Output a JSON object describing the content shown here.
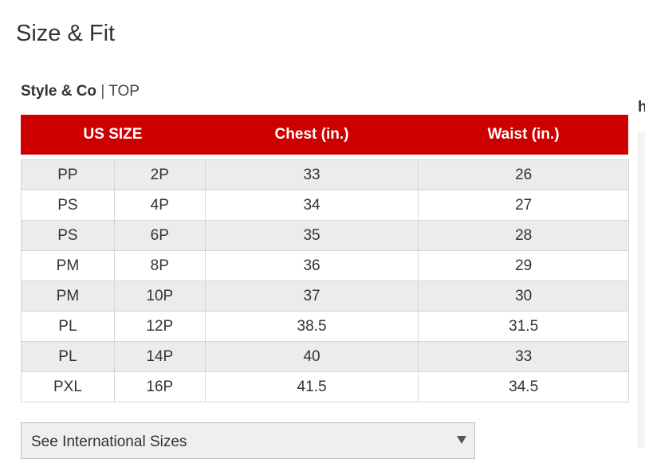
{
  "title": "Size & Fit",
  "subtitle": {
    "brand": "Style & Co",
    "separator": "|",
    "category": "TOP"
  },
  "table": {
    "headers": {
      "size": "US SIZE",
      "chest": "Chest (in.)",
      "waist": "Waist (in.)"
    },
    "rows": [
      {
        "alpha": "PP",
        "numeric": "2P",
        "chest": "33",
        "waist": "26"
      },
      {
        "alpha": "PS",
        "numeric": "4P",
        "chest": "34",
        "waist": "27"
      },
      {
        "alpha": "PS",
        "numeric": "6P",
        "chest": "35",
        "waist": "28"
      },
      {
        "alpha": "PM",
        "numeric": "8P",
        "chest": "36",
        "waist": "29"
      },
      {
        "alpha": "PM",
        "numeric": "10P",
        "chest": "37",
        "waist": "30"
      },
      {
        "alpha": "PL",
        "numeric": "12P",
        "chest": "38.5",
        "waist": "31.5"
      },
      {
        "alpha": "PL",
        "numeric": "14P",
        "chest": "40",
        "waist": "33"
      },
      {
        "alpha": "PXL",
        "numeric": "16P",
        "chest": "41.5",
        "waist": "34.5"
      }
    ]
  },
  "international_select": {
    "label": "See International Sizes",
    "icon": "chevron-down-icon"
  },
  "right_edge": {
    "letter": "h"
  },
  "colors": {
    "header_bg": "#cc0000",
    "header_text": "#ffffff",
    "row_alt": "#ececec"
  }
}
